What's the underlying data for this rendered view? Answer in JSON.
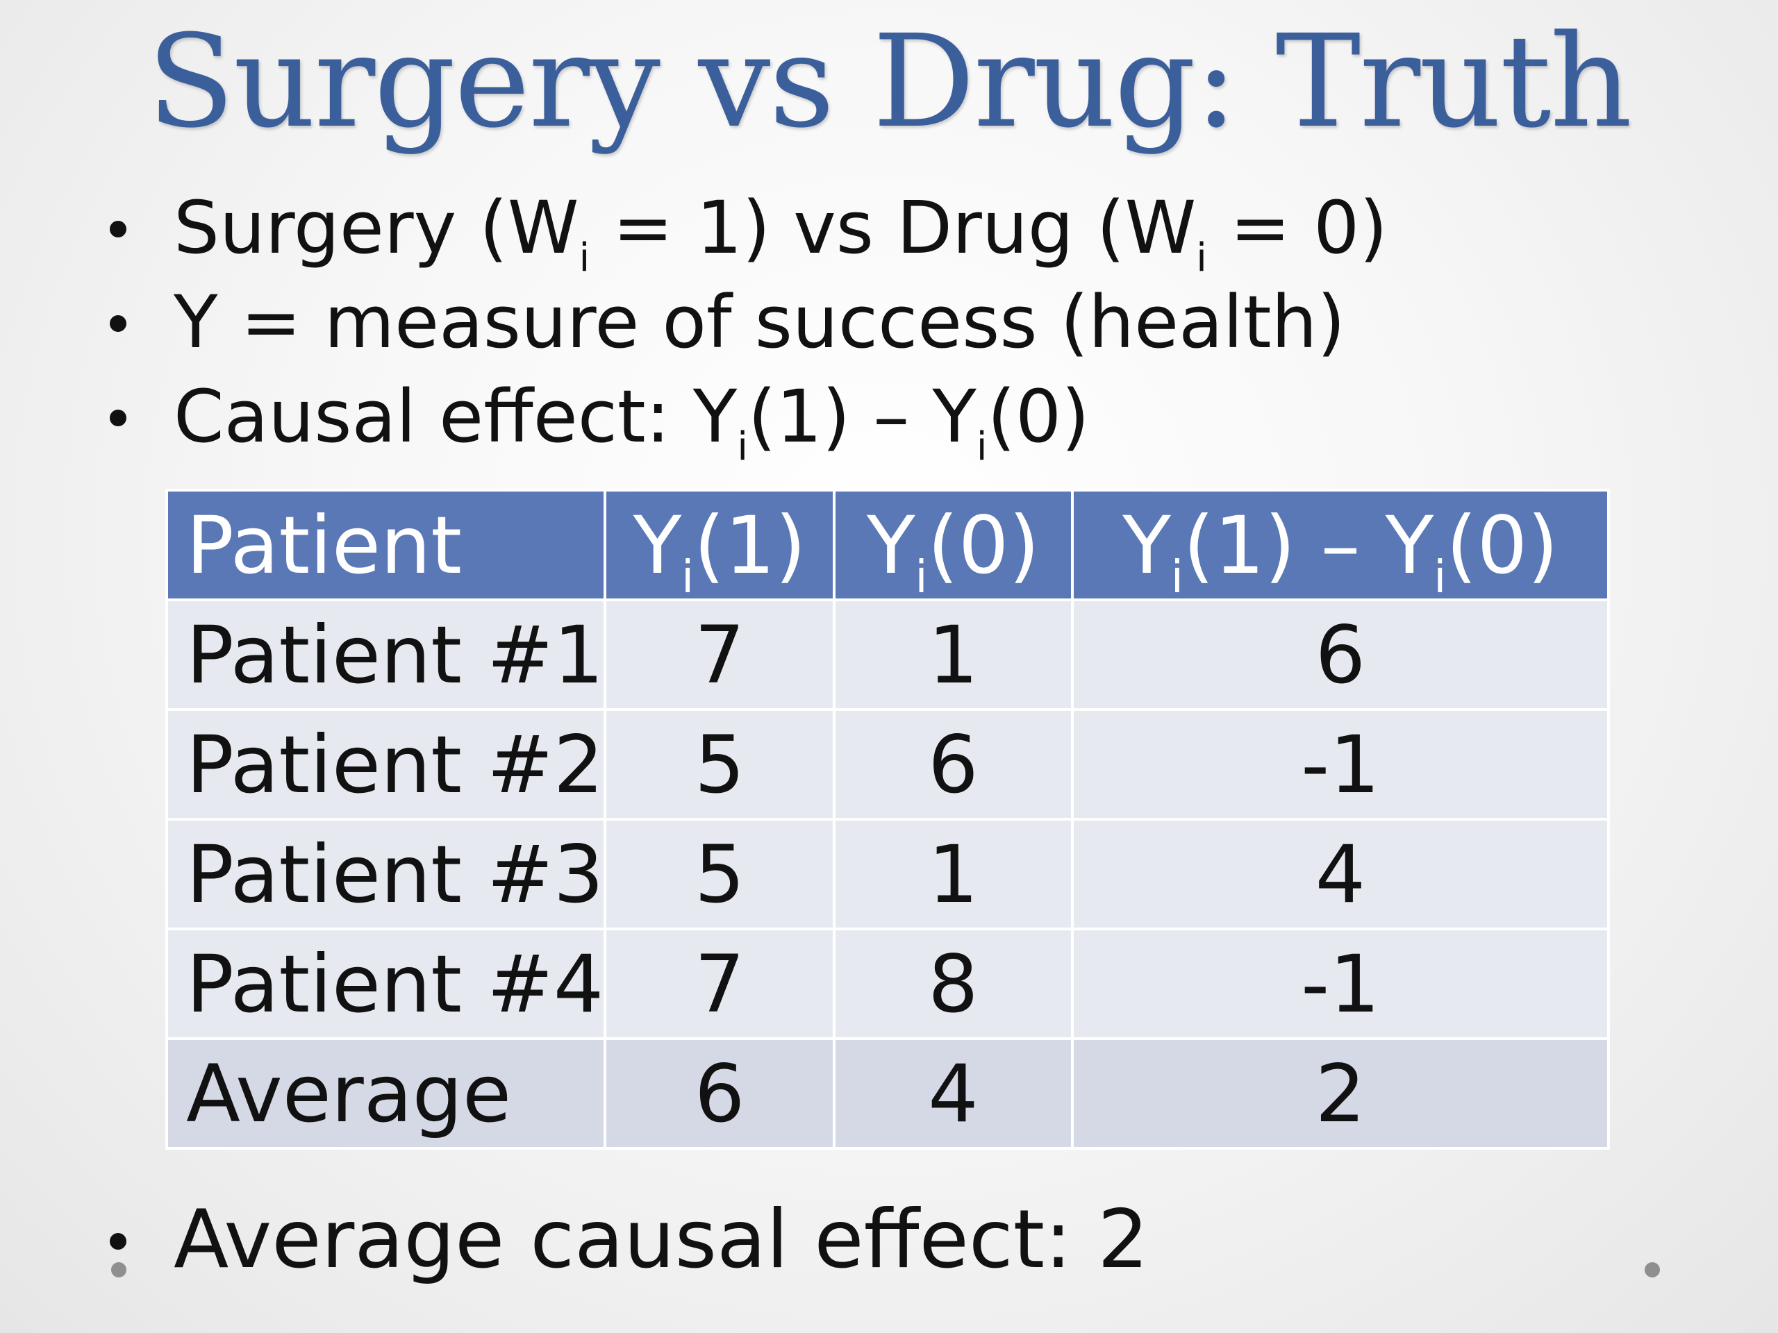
{
  "slide": {
    "title": "Surgery vs Drug: Truth",
    "title_color": "#3b5f9b",
    "bullets": [
      {
        "parts": [
          "Surgery (W",
          "i",
          " = 1) vs Drug (W",
          "i",
          " = 0)"
        ]
      },
      {
        "parts": [
          "Y = measure of success (health)"
        ]
      },
      {
        "parts": [
          "Causal effect: Y",
          "i",
          "(1) – Y",
          "i",
          "(0)"
        ]
      }
    ],
    "closing_bullet": "Average causal effect: 2"
  },
  "table": {
    "header_color": "#5b78b6",
    "row_color": "#e6eaf0",
    "average_row_color": "#d5d9e6",
    "headers": {
      "patient": "Patient",
      "y1": {
        "base": "Y",
        "sub": "i",
        "rest": "(1)"
      },
      "y0": {
        "base": "Y",
        "sub": "i",
        "rest": "(0)"
      },
      "diff": {
        "base1": "Y",
        "sub1": "i",
        "mid": "(1) – Y",
        "sub2": "i",
        "rest": "(0)"
      }
    },
    "rows": [
      {
        "patient": "Patient #1",
        "y1": "7",
        "y0": "1",
        "diff": "6"
      },
      {
        "patient": "Patient #2",
        "y1": "5",
        "y0": "6",
        "diff": "-1"
      },
      {
        "patient": "Patient #3",
        "y1": "5",
        "y0": "1",
        "diff": "4"
      },
      {
        "patient": "Patient #4",
        "y1": "7",
        "y0": "8",
        "diff": "-1"
      }
    ],
    "average": {
      "patient": "Average",
      "y1": "6",
      "y0": "4",
      "diff": "2"
    }
  }
}
